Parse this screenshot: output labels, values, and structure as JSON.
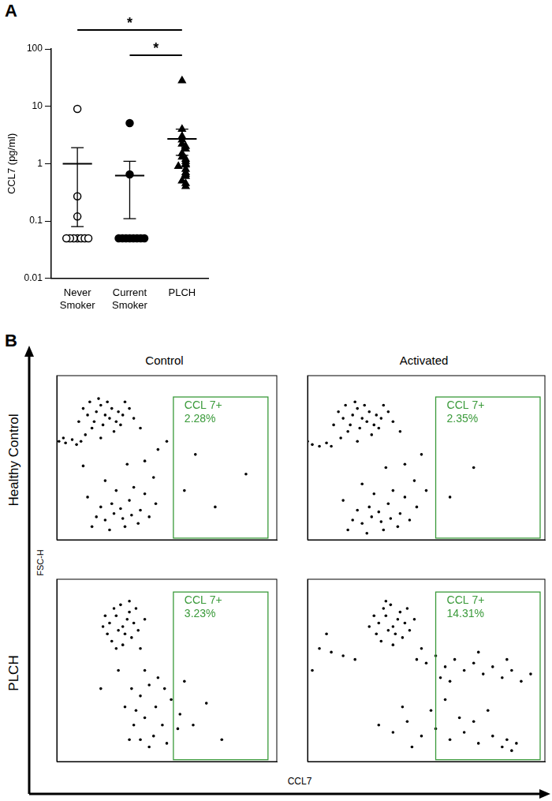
{
  "chart_data": [
    {
      "panel": "A",
      "type": "scatter",
      "y_label": "CCL7 (pg/ml)",
      "color": "#000000",
      "categories": [
        "Never Smoker",
        "Current Smoker",
        "PLCH"
      ],
      "log": "y",
      "ylim": [
        0.01,
        100
      ],
      "yticks": [
        0.01,
        0.1,
        1,
        10,
        100
      ],
      "grid": false,
      "groups": [
        {
          "category": "Never Smoker",
          "marker": "circle-open",
          "values": [
            9.0,
            0.27,
            0.12,
            0.05,
            0.05,
            0.05,
            0.05,
            0.05,
            0.05,
            0.05
          ],
          "mean": 1.0,
          "error": [
            0.08,
            1.9
          ]
        },
        {
          "category": "Current Smoker",
          "marker": "circle",
          "values": [
            5.1,
            0.65,
            0.05,
            0.05,
            0.05,
            0.05,
            0.05,
            0.05,
            0.05,
            0.05
          ],
          "mean": 0.62,
          "error": [
            0.11,
            1.1
          ]
        },
        {
          "category": "PLCH",
          "marker": "triangle",
          "values": [
            28,
            4.0,
            3.0,
            2.6,
            2.2,
            2.0,
            1.8,
            1.5,
            1.3,
            1.2,
            1.1,
            1.0,
            0.95,
            0.9,
            0.8,
            0.7,
            0.65,
            0.6,
            0.5,
            0.45,
            0.4
          ],
          "mean": 2.7,
          "error": [
            1.4,
            4.0
          ]
        }
      ],
      "annotations": [
        {
          "between": [
            "Never Smoker",
            "PLCH"
          ],
          "text": "*"
        },
        {
          "between": [
            "Current Smoker",
            "PLCH"
          ],
          "text": "*"
        }
      ]
    },
    {
      "type": "scatter",
      "row": "Healthy Control",
      "column": "Control",
      "color": "#000000",
      "xlim": [
        0,
        100
      ],
      "ylim": [
        0,
        100
      ],
      "tick_labels": false,
      "grid": false,
      "gate": {
        "xlim": [
          53,
          96
        ],
        "ylim": [
          1,
          87
        ],
        "label": "CCL 7+",
        "value": 2.28,
        "value_label": "2.28%"
      },
      "points": [
        [
          12,
          80
        ],
        [
          15,
          84
        ],
        [
          18,
          78
        ],
        [
          20,
          82
        ],
        [
          22,
          76
        ],
        [
          25,
          80
        ],
        [
          17,
          72
        ],
        [
          21,
          70
        ],
        [
          24,
          74
        ],
        [
          28,
          78
        ],
        [
          14,
          76
        ],
        [
          19,
          86
        ],
        [
          23,
          84
        ],
        [
          27,
          72
        ],
        [
          30,
          76
        ],
        [
          33,
          80
        ],
        [
          16,
          68
        ],
        [
          26,
          66
        ],
        [
          29,
          70
        ],
        [
          35,
          74
        ],
        [
          10,
          72
        ],
        [
          13,
          64
        ],
        [
          31,
          84
        ],
        [
          20,
          62
        ],
        [
          38,
          68
        ],
        [
          1,
          60
        ],
        [
          4,
          59
        ],
        [
          7,
          61
        ],
        [
          9,
          58
        ],
        [
          11,
          60
        ],
        [
          3,
          62
        ],
        [
          18,
          14
        ],
        [
          22,
          12
        ],
        [
          26,
          16
        ],
        [
          30,
          13
        ],
        [
          34,
          15
        ],
        [
          20,
          20
        ],
        [
          25,
          22
        ],
        [
          29,
          19
        ],
        [
          33,
          24
        ],
        [
          38,
          18
        ],
        [
          42,
          14
        ],
        [
          16,
          8
        ],
        [
          24,
          6
        ],
        [
          31,
          8
        ],
        [
          37,
          10
        ],
        [
          27,
          30
        ],
        [
          35,
          32
        ],
        [
          22,
          36
        ],
        [
          40,
          28
        ],
        [
          45,
          22
        ],
        [
          14,
          26
        ],
        [
          44,
          38
        ],
        [
          40,
          48
        ],
        [
          32,
          46
        ],
        [
          46,
          55
        ],
        [
          12,
          45
        ],
        [
          50,
          60
        ],
        [
          58,
          30
        ],
        [
          63,
          52
        ],
        [
          72,
          20
        ],
        [
          86,
          40
        ]
      ]
    },
    {
      "type": "scatter",
      "row": "Healthy Control",
      "column": "Activated",
      "color": "#000000",
      "xlim": [
        0,
        100
      ],
      "ylim": [
        0,
        100
      ],
      "tick_labels": false,
      "grid": false,
      "gate": {
        "xlim": [
          54,
          98
        ],
        "ylim": [
          1,
          87
        ],
        "label": "CCL 7+",
        "value": 2.35,
        "value_label": "2.35%"
      },
      "points": [
        [
          13,
          78
        ],
        [
          16,
          82
        ],
        [
          19,
          76
        ],
        [
          21,
          80
        ],
        [
          23,
          74
        ],
        [
          26,
          78
        ],
        [
          18,
          70
        ],
        [
          22,
          68
        ],
        [
          25,
          72
        ],
        [
          29,
          76
        ],
        [
          15,
          74
        ],
        [
          20,
          84
        ],
        [
          24,
          82
        ],
        [
          28,
          70
        ],
        [
          31,
          74
        ],
        [
          34,
          78
        ],
        [
          17,
          66
        ],
        [
          27,
          64
        ],
        [
          30,
          68
        ],
        [
          36,
          72
        ],
        [
          11,
          70
        ],
        [
          14,
          62
        ],
        [
          32,
          82
        ],
        [
          21,
          60
        ],
        [
          39,
          66
        ],
        [
          2,
          58
        ],
        [
          5,
          57
        ],
        [
          8,
          59
        ],
        [
          0,
          60
        ],
        [
          10,
          57
        ],
        [
          19,
          12
        ],
        [
          23,
          10
        ],
        [
          27,
          14
        ],
        [
          31,
          11
        ],
        [
          35,
          13
        ],
        [
          21,
          18
        ],
        [
          26,
          20
        ],
        [
          30,
          17
        ],
        [
          34,
          22
        ],
        [
          39,
          16
        ],
        [
          43,
          12
        ],
        [
          17,
          6
        ],
        [
          25,
          4
        ],
        [
          32,
          6
        ],
        [
          38,
          8
        ],
        [
          28,
          28
        ],
        [
          36,
          30
        ],
        [
          23,
          34
        ],
        [
          41,
          26
        ],
        [
          46,
          20
        ],
        [
          15,
          24
        ],
        [
          45,
          36
        ],
        [
          41,
          46
        ],
        [
          33,
          44
        ],
        [
          48,
          52
        ],
        [
          50,
          30
        ],
        [
          60,
          26
        ],
        [
          70,
          44
        ]
      ]
    },
    {
      "type": "scatter",
      "row": "PLCH",
      "column": "Control",
      "color": "#000000",
      "xlim": [
        0,
        100
      ],
      "ylim": [
        0,
        100
      ],
      "tick_labels": false,
      "grid": false,
      "gate": {
        "xlim": [
          53,
          96
        ],
        "ylim": [
          1,
          93
        ],
        "label": "CCL 7+",
        "value": 3.23,
        "value_label": "3.23%"
      },
      "points": [
        [
          24,
          76
        ],
        [
          27,
          80
        ],
        [
          30,
          74
        ],
        [
          32,
          78
        ],
        [
          28,
          72
        ],
        [
          26,
          84
        ],
        [
          33,
          82
        ],
        [
          29,
          86
        ],
        [
          31,
          70
        ],
        [
          35,
          76
        ],
        [
          23,
          70
        ],
        [
          25,
          66
        ],
        [
          34,
          68
        ],
        [
          37,
          72
        ],
        [
          22,
          80
        ],
        [
          30,
          64
        ],
        [
          36,
          84
        ],
        [
          38,
          62
        ],
        [
          27,
          62
        ],
        [
          21,
          74
        ],
        [
          33,
          88
        ],
        [
          40,
          78
        ],
        [
          34,
          40
        ],
        [
          38,
          36
        ],
        [
          42,
          42
        ],
        [
          36,
          28
        ],
        [
          40,
          24
        ],
        [
          45,
          30
        ],
        [
          48,
          20
        ],
        [
          44,
          14
        ],
        [
          50,
          10
        ],
        [
          38,
          12
        ],
        [
          42,
          8
        ],
        [
          46,
          46
        ],
        [
          52,
          34
        ],
        [
          55,
          18
        ],
        [
          35,
          20
        ],
        [
          31,
          30
        ],
        [
          49,
          40
        ],
        [
          56,
          26
        ],
        [
          40,
          50
        ],
        [
          33,
          12
        ],
        [
          58,
          44
        ],
        [
          62,
          20
        ],
        [
          68,
          32
        ],
        [
          20,
          40
        ],
        [
          28,
          50
        ],
        [
          75,
          12
        ]
      ]
    },
    {
      "type": "scatter",
      "row": "PLCH",
      "column": "Activated",
      "color": "#000000",
      "xlim": [
        0,
        100
      ],
      "ylim": [
        0,
        100
      ],
      "tick_labels": false,
      "grid": false,
      "gate": {
        "xlim": [
          54,
          98
        ],
        "ylim": [
          1,
          93
        ],
        "label": "CCL 7+",
        "value": 14.31,
        "value_label": "14.31%"
      },
      "points": [
        [
          30,
          76
        ],
        [
          33,
          80
        ],
        [
          36,
          74
        ],
        [
          38,
          78
        ],
        [
          34,
          72
        ],
        [
          32,
          84
        ],
        [
          39,
          82
        ],
        [
          35,
          86
        ],
        [
          37,
          70
        ],
        [
          41,
          76
        ],
        [
          29,
          70
        ],
        [
          31,
          66
        ],
        [
          40,
          68
        ],
        [
          43,
          72
        ],
        [
          28,
          80
        ],
        [
          36,
          64
        ],
        [
          42,
          84
        ],
        [
          26,
          74
        ],
        [
          45,
          78
        ],
        [
          33,
          88
        ],
        [
          5,
          62
        ],
        [
          10,
          60
        ],
        [
          15,
          58
        ],
        [
          2,
          50
        ],
        [
          20,
          56
        ],
        [
          8,
          70
        ],
        [
          46,
          56
        ],
        [
          50,
          54
        ],
        [
          54,
          58
        ],
        [
          58,
          52
        ],
        [
          62,
          56
        ],
        [
          66,
          50
        ],
        [
          70,
          54
        ],
        [
          74,
          48
        ],
        [
          78,
          52
        ],
        [
          82,
          46
        ],
        [
          86,
          50
        ],
        [
          90,
          44
        ],
        [
          94,
          48
        ],
        [
          60,
          44
        ],
        [
          72,
          60
        ],
        [
          48,
          62
        ],
        [
          56,
          46
        ],
        [
          84,
          56
        ],
        [
          30,
          20
        ],
        [
          36,
          16
        ],
        [
          42,
          22
        ],
        [
          48,
          14
        ],
        [
          54,
          18
        ],
        [
          60,
          12
        ],
        [
          66,
          16
        ],
        [
          72,
          10
        ],
        [
          78,
          14
        ],
        [
          82,
          8
        ],
        [
          84,
          12
        ],
        [
          86,
          6
        ],
        [
          88,
          10
        ],
        [
          64,
          24
        ],
        [
          52,
          28
        ],
        [
          40,
          30
        ],
        [
          70,
          22
        ],
        [
          44,
          8
        ],
        [
          58,
          34
        ],
        [
          76,
          28
        ]
      ]
    }
  ],
  "panel_b": {
    "label": "B",
    "columns": [
      "Control",
      "Activated"
    ],
    "rows": [
      "Healthy Control",
      "PLCH"
    ],
    "x_label": "CCL7",
    "y_label": "FSC-H"
  }
}
